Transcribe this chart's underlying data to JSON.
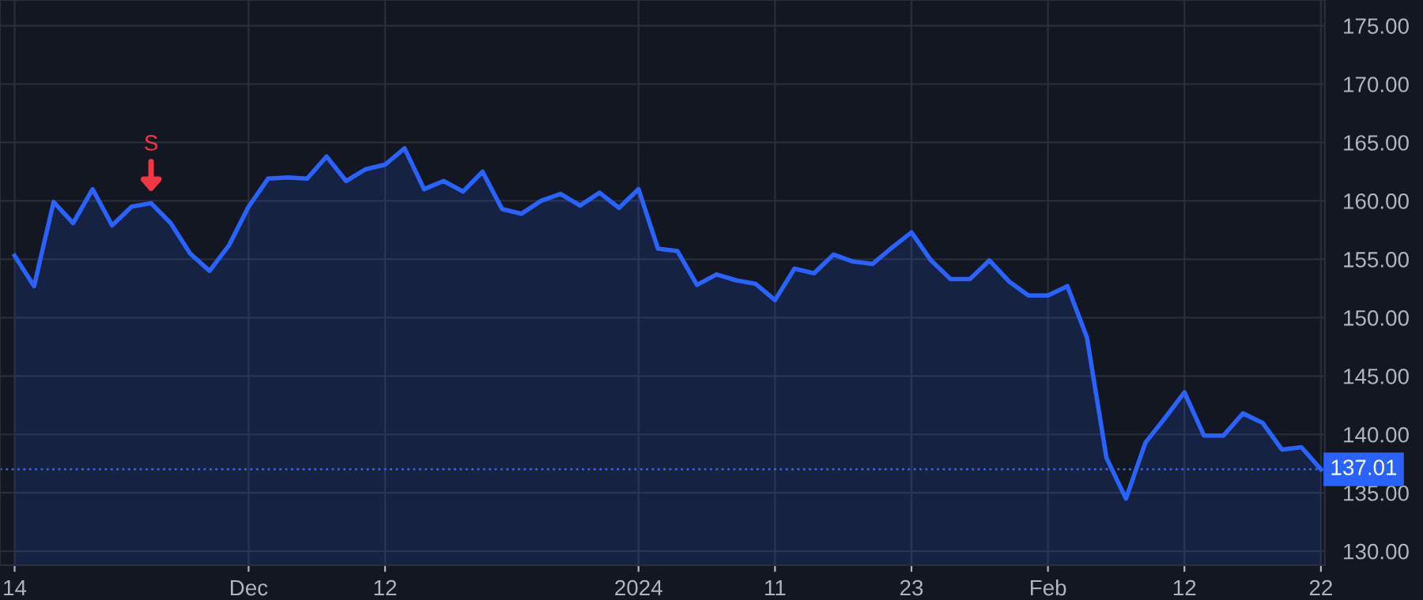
{
  "chart_data": {
    "type": "area",
    "categories": [
      "14",
      null,
      null,
      null,
      null,
      null,
      null,
      null,
      null,
      null,
      null,
      null,
      "Dec",
      null,
      null,
      null,
      null,
      null,
      null,
      "12",
      null,
      null,
      null,
      null,
      null,
      null,
      null,
      null,
      null,
      null,
      null,
      null,
      "2024",
      null,
      null,
      null,
      null,
      null,
      null,
      "11",
      null,
      null,
      null,
      null,
      null,
      null,
      "23",
      null,
      null,
      null,
      null,
      null,
      null,
      "Feb",
      null,
      null,
      null,
      null,
      null,
      null,
      "12",
      null,
      null,
      null,
      null,
      null,
      null,
      "22"
    ],
    "series": [
      {
        "color": "#2962ff",
        "values": [
          155.3,
          152.7,
          159.9,
          158.1,
          161.0,
          157.9,
          159.5,
          159.8,
          158.1,
          155.5,
          154.0,
          156.2,
          159.5,
          161.9,
          162.0,
          161.9,
          163.8,
          161.7,
          162.7,
          163.1,
          164.5,
          161.0,
          161.7,
          160.8,
          162.5,
          159.3,
          158.9,
          160.0,
          160.6,
          159.6,
          160.7,
          159.4,
          161.0,
          155.9,
          155.7,
          152.8,
          153.7,
          153.2,
          152.9,
          151.5,
          154.2,
          153.8,
          155.4,
          154.8,
          154.6,
          156.0,
          157.3,
          154.9,
          153.3,
          153.3,
          154.9,
          153.1,
          151.9,
          151.9,
          152.7,
          148.3,
          138.0,
          134.5,
          139.3,
          141.4,
          143.6,
          139.9,
          139.9,
          141.8,
          141.0,
          138.7,
          138.9,
          137.01
        ]
      }
    ],
    "ylim": [
      128.8,
      177.2
    ],
    "yticks": [
      {
        "value": 130,
        "label": "130.00"
      },
      {
        "value": 135,
        "label": "135.00"
      },
      {
        "value": 140,
        "label": "140.00"
      },
      {
        "value": 145,
        "label": "145.00"
      },
      {
        "value": 150,
        "label": "150.00"
      },
      {
        "value": 155,
        "label": "155.00"
      },
      {
        "value": 160,
        "label": "160.00"
      },
      {
        "value": 165,
        "label": "165.00"
      },
      {
        "value": 170,
        "label": "170.00"
      },
      {
        "value": 175,
        "label": "175.00"
      }
    ],
    "ref_lines": [
      {
        "axis": "y",
        "value": 137.01,
        "label": "137.01",
        "color": "#2962ff",
        "line_style": "dotted"
      }
    ],
    "annotations": [
      {
        "text": "S",
        "y": 159.8
      }
    ],
    "grid": true
  }
}
